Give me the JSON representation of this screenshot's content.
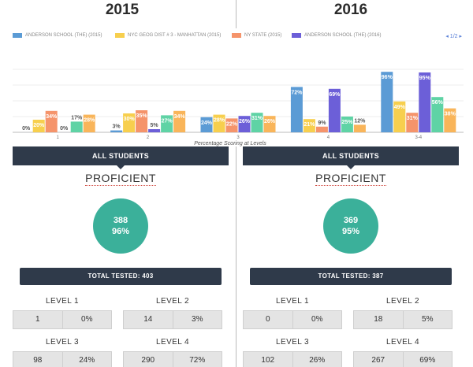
{
  "years": [
    "2015",
    "2016"
  ],
  "legend": [
    {
      "name": "ANDERSON SCHOOL (THE) (2015)",
      "color": "#5b9bd5"
    },
    {
      "name": "NYC GEOG DIST # 3 - MANHATTAN (2015)",
      "color": "#f7cf4e"
    },
    {
      "name": "NY STATE (2015)",
      "color": "#f5946b"
    },
    {
      "name": "ANDERSON SCHOOL (THE) (2016)",
      "color": "#6c5fd8"
    }
  ],
  "pager": "◂ 1/2 ▸",
  "chart_data": {
    "type": "bar",
    "xlabel": "Percentage Scoring at Levels",
    "categories": [
      "1",
      "2",
      "3",
      "4",
      "3-4"
    ],
    "ylim": [
      0,
      100
    ],
    "grid": true,
    "series": [
      {
        "name": "ANDERSON SCHOOL (THE) (2015)",
        "color": "#5b9bd5",
        "values": [
          0,
          3,
          24,
          72,
          96
        ]
      },
      {
        "name": "NYC GEOG DIST # 3 - MANHATTAN (2015)",
        "color": "#f7cf4e",
        "values": [
          20,
          30,
          28,
          21,
          49
        ]
      },
      {
        "name": "NY STATE (2015)",
        "color": "#f5946b",
        "values": [
          34,
          35,
          22,
          9,
          31
        ]
      },
      {
        "name": "ANDERSON SCHOOL (THE) (2016)",
        "color": "#6c5fd8",
        "values": [
          0,
          5,
          26,
          69,
          95
        ]
      },
      {
        "color": "#5fd3a5",
        "values": [
          17,
          27,
          31,
          25,
          56
        ]
      },
      {
        "color": "#f9b55a",
        "values": [
          28,
          34,
          26,
          12,
          38
        ]
      }
    ]
  },
  "panels": [
    {
      "header": "ALL STUDENTS",
      "proficient_label": "PROFICIENT",
      "proficient_count": "388",
      "proficient_pct": "96%",
      "total_tested": "TOTAL TESTED: 403",
      "levels": [
        {
          "title": "LEVEL 1",
          "count": "1",
          "pct": "0%"
        },
        {
          "title": "LEVEL 2",
          "count": "14",
          "pct": "3%"
        },
        {
          "title": "LEVEL 3",
          "count": "98",
          "pct": "24%"
        },
        {
          "title": "LEVEL 4",
          "count": "290",
          "pct": "72%"
        }
      ]
    },
    {
      "header": "ALL STUDENTS",
      "proficient_label": "PROFICIENT",
      "proficient_count": "369",
      "proficient_pct": "95%",
      "total_tested": "TOTAL TESTED: 387",
      "levels": [
        {
          "title": "LEVEL 1",
          "count": "0",
          "pct": "0%"
        },
        {
          "title": "LEVEL 2",
          "count": "18",
          "pct": "5%"
        },
        {
          "title": "LEVEL 3",
          "count": "102",
          "pct": "26%"
        },
        {
          "title": "LEVEL 4",
          "count": "267",
          "pct": "69%"
        }
      ]
    }
  ]
}
